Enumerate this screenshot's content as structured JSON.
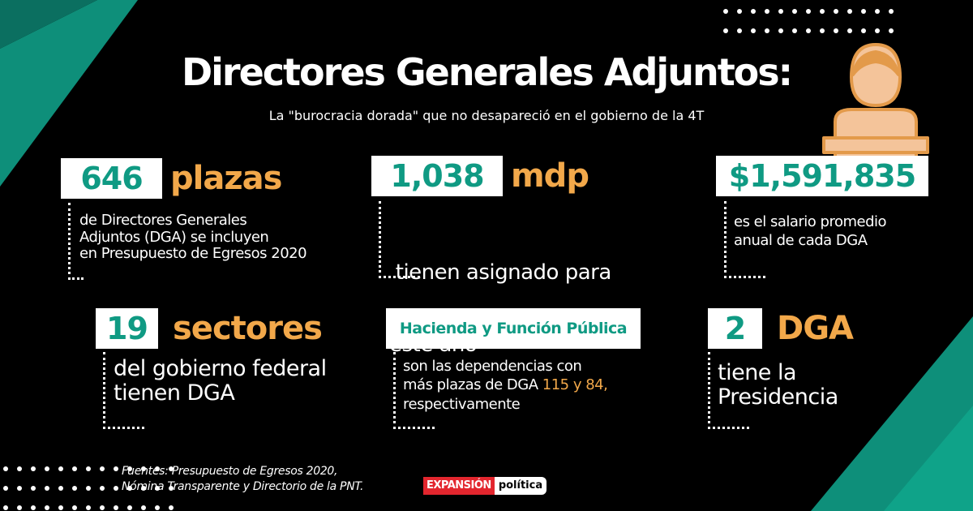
{
  "header": {
    "title": "Directores Generales Adjuntos:",
    "subtitle": "La \"burocracia dorada\" que no desapareció en el gobierno de la 4T"
  },
  "stats": [
    {
      "number": "646",
      "unit": "plazas",
      "lines": [
        "de Directores Generales",
        "Adjuntos (DGA)  se incluyen",
        "en Presupuesto de Egresos 2020"
      ]
    },
    {
      "number": "1,038",
      "unit": "mdp",
      "lines": [
        " tienen asignado para",
        "este año"
      ]
    },
    {
      "number": "$1,591,835",
      "lines": [
        "es el salario promedio",
        "anual de cada DGA"
      ]
    },
    {
      "number": "19",
      "unit": "sectores",
      "lines": [
        "del gobierno federal",
        "tienen DGA"
      ]
    },
    {
      "number": "Hacienda y Función Pública",
      "lines": [
        "son las dependencias con",
        "más plazas de DGA",
        "respectivamente"
      ],
      "highlight": "115 y 84,"
    },
    {
      "number": "2",
      "unit": "DGA",
      "lines": [
        "tiene la",
        "Presidencia"
      ]
    }
  ],
  "footer": {
    "sources": [
      "Fuentes: Presupuesto de Egresos 2020,",
      "Nómina Transparente y Directorio de la PNT."
    ],
    "logo_brand": "EXPANSIÓN",
    "logo_section": "política"
  }
}
